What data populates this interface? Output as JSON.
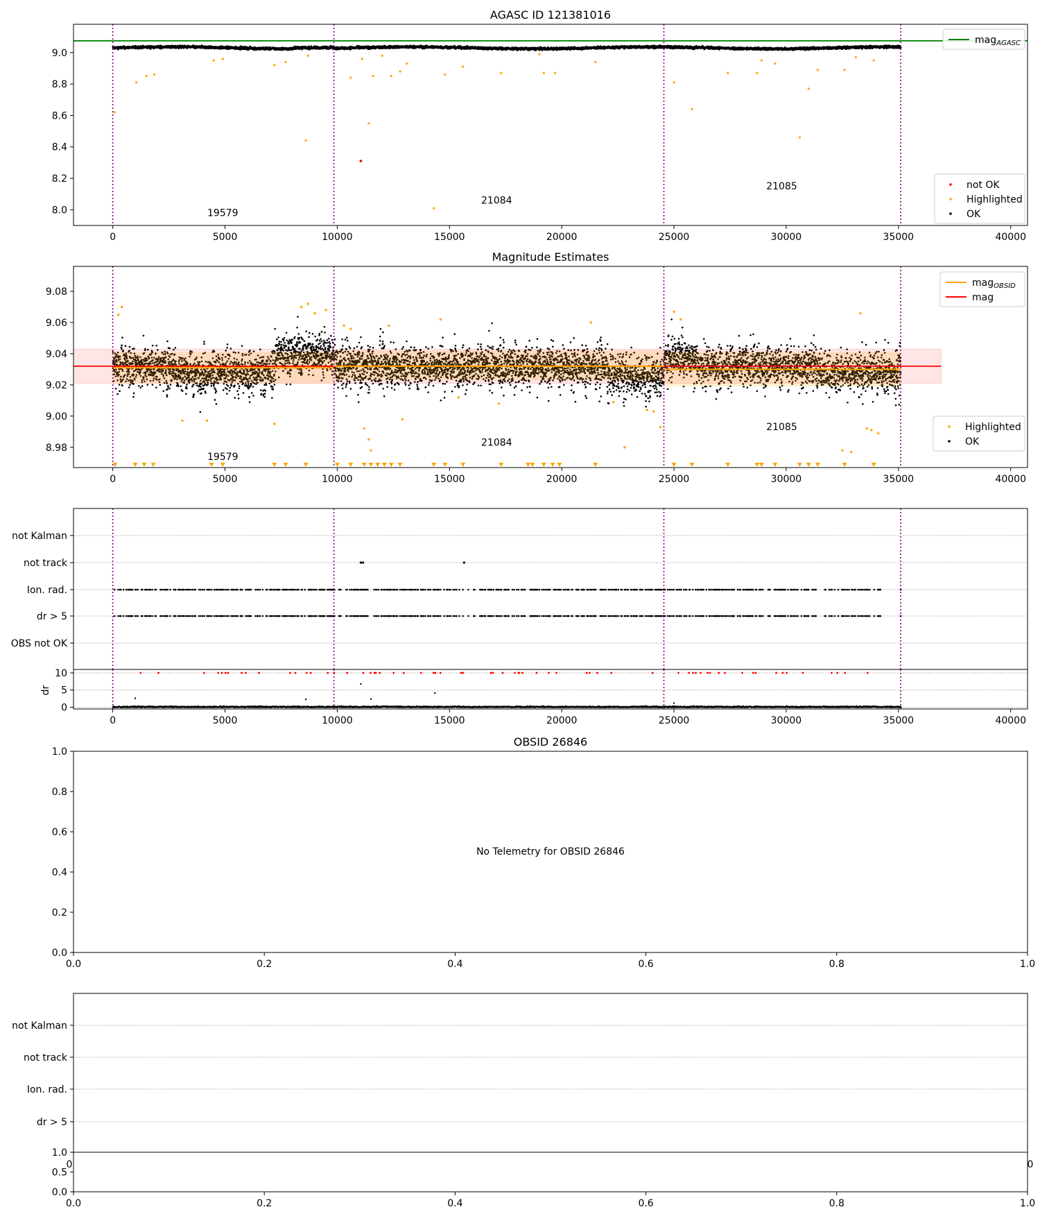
{
  "chart_data": [
    {
      "type": "scatter",
      "title": "AGASC ID 121381016",
      "xlim": [
        -1750,
        40750
      ],
      "ylim": [
        7.9,
        9.18
      ],
      "xticks": [
        0,
        5000,
        10000,
        15000,
        20000,
        25000,
        30000,
        35000,
        40000
      ],
      "xtick_labels": [
        "0",
        "5000",
        "10000",
        "15000",
        "20000",
        "25000",
        "30000",
        "35000",
        "40000"
      ],
      "yticks": [
        8.0,
        8.2,
        8.4,
        8.6,
        8.8,
        9.0
      ],
      "ytick_labels": [
        "8.0",
        "8.2",
        "8.4",
        "8.6",
        "8.8",
        "9.0"
      ],
      "mag_agasc": 9.075,
      "obsid_boundaries": [
        0,
        9850,
        24550,
        35100
      ],
      "obsid_labels": [
        {
          "text": "19579",
          "x": 4900,
          "y": 7.96
        },
        {
          "text": "21084",
          "x": 17100,
          "y": 8.04
        },
        {
          "text": "21085",
          "x": 29800,
          "y": 8.13
        }
      ],
      "ok_band": {
        "x_range": [
          0,
          35100
        ],
        "center": 9.03,
        "spread": 0.025
      },
      "highlighted_points": [
        [
          80,
          8.62
        ],
        [
          1050,
          8.81
        ],
        [
          1500,
          8.85
        ],
        [
          1850,
          8.86
        ],
        [
          4500,
          8.95
        ],
        [
          4900,
          8.96
        ],
        [
          7200,
          8.92
        ],
        [
          7700,
          8.94
        ],
        [
          8600,
          8.44
        ],
        [
          8700,
          8.98
        ],
        [
          10600,
          8.84
        ],
        [
          11100,
          8.96
        ],
        [
          11400,
          8.55
        ],
        [
          11600,
          8.85
        ],
        [
          12000,
          8.98
        ],
        [
          12400,
          8.85
        ],
        [
          12800,
          8.88
        ],
        [
          13100,
          8.93
        ],
        [
          14300,
          8.01
        ],
        [
          14800,
          8.86
        ],
        [
          15600,
          8.91
        ],
        [
          17300,
          8.87
        ],
        [
          19000,
          8.99
        ],
        [
          19200,
          8.87
        ],
        [
          19700,
          8.87
        ],
        [
          21500,
          8.94
        ],
        [
          25000,
          8.81
        ],
        [
          25800,
          8.64
        ],
        [
          27400,
          8.87
        ],
        [
          28700,
          8.87
        ],
        [
          28900,
          8.95
        ],
        [
          29500,
          8.93
        ],
        [
          30600,
          8.46
        ],
        [
          31000,
          8.77
        ],
        [
          31400,
          8.89
        ],
        [
          32600,
          8.89
        ],
        [
          33100,
          8.97
        ],
        [
          33900,
          8.95
        ]
      ],
      "not_ok_points": [
        [
          11050,
          8.31
        ]
      ],
      "legend": [
        {
          "label": "mag",
          "sub": "AGASC",
          "color": "#008000",
          "kind": "line",
          "placement": "upper right"
        },
        {
          "label": "not OK",
          "color": "#ff0000",
          "kind": "point",
          "placement": "lower right"
        },
        {
          "label": "Highlighted",
          "color": "#ffa500",
          "kind": "point",
          "placement": "lower right"
        },
        {
          "label": "OK",
          "color": "#000000",
          "kind": "point",
          "placement": "lower right"
        }
      ]
    },
    {
      "type": "scatter",
      "title": "Magnitude Estimates",
      "xlim": [
        -1750,
        40750
      ],
      "ylim": [
        8.967,
        9.096
      ],
      "xticks": [
        0,
        5000,
        10000,
        15000,
        20000,
        25000,
        30000,
        35000,
        40000
      ],
      "xtick_labels": [
        "0",
        "5000",
        "10000",
        "15000",
        "20000",
        "25000",
        "30000",
        "35000",
        "40000"
      ],
      "yticks": [
        8.98,
        9.0,
        9.02,
        9.04,
        9.06,
        9.08
      ],
      "ytick_labels": [
        "8.98",
        "9.00",
        "9.02",
        "9.04",
        "9.06",
        "9.08"
      ],
      "mag": 9.032,
      "mag_band": [
        9.021,
        9.043
      ],
      "mag_obsid_segments": [
        {
          "x0": 0,
          "x1": 9850,
          "mag": 9.031,
          "band": [
            9.021,
            9.041
          ]
        },
        {
          "x0": 9850,
          "x1": 24550,
          "mag": 9.032,
          "band": [
            9.023,
            9.042
          ]
        },
        {
          "x0": 24550,
          "x1": 35100,
          "mag": 9.03,
          "band": [
            9.019,
            9.041
          ]
        }
      ],
      "obsid_boundaries": [
        0,
        9850,
        24550,
        35100
      ],
      "obsid_labels": [
        {
          "text": "19579",
          "x": 4900,
          "y": 8.972
        },
        {
          "text": "21084",
          "x": 17100,
          "y": 8.981
        },
        {
          "text": "21085",
          "x": 29800,
          "y": 8.991
        }
      ],
      "highlighted_points": [
        [
          250,
          9.065
        ],
        [
          400,
          9.07
        ],
        [
          3100,
          8.997
        ],
        [
          4200,
          8.997
        ],
        [
          7200,
          8.995
        ],
        [
          8400,
          9.07
        ],
        [
          8700,
          9.072
        ],
        [
          9000,
          9.066
        ],
        [
          9500,
          9.068
        ],
        [
          10300,
          9.058
        ],
        [
          10600,
          9.056
        ],
        [
          11200,
          8.992
        ],
        [
          11400,
          8.985
        ],
        [
          11500,
          8.978
        ],
        [
          12300,
          9.058
        ],
        [
          12900,
          8.998
        ],
        [
          14600,
          9.062
        ],
        [
          15400,
          9.012
        ],
        [
          17200,
          9.008
        ],
        [
          21300,
          9.06
        ],
        [
          22300,
          9.009
        ],
        [
          22800,
          8.98
        ],
        [
          23800,
          9.004
        ],
        [
          24100,
          9.003
        ],
        [
          24400,
          8.993
        ],
        [
          25000,
          9.067
        ],
        [
          25300,
          9.062
        ],
        [
          32500,
          8.978
        ],
        [
          32900,
          8.977
        ],
        [
          33300,
          9.066
        ],
        [
          33600,
          8.992
        ],
        [
          33800,
          8.991
        ],
        [
          34100,
          8.989
        ]
      ],
      "low_markers_x": [
        100,
        1000,
        1400,
        1800,
        4400,
        4900,
        7200,
        7700,
        8600,
        10000,
        10600,
        11200,
        11500,
        11800,
        12100,
        12400,
        12800,
        14300,
        14800,
        15600,
        17300,
        18500,
        18700,
        19200,
        19600,
        19900,
        21500,
        25000,
        25800,
        27400,
        28700,
        28900,
        29500,
        30600,
        31000,
        31400,
        32600,
        33900
      ],
      "legend": [
        {
          "label": "mag",
          "sub": "OBSID",
          "color": "#ffa500",
          "kind": "line",
          "placement": "upper right"
        },
        {
          "label": "mag",
          "color": "#ff0000",
          "kind": "line",
          "placement": "upper right"
        },
        {
          "label": "Highlighted",
          "color": "#ffa500",
          "kind": "point",
          "placement": "lower right"
        },
        {
          "label": "OK",
          "color": "#000000",
          "kind": "point",
          "placement": "lower right"
        }
      ]
    },
    {
      "type": "scatter",
      "title": "",
      "xlim": [
        -1750,
        40750
      ],
      "categories": [
        "not Kalman",
        "not track",
        "Ion. rad.",
        "dr > 5",
        "OBS not OK"
      ],
      "xticks": [
        0,
        5000,
        10000,
        15000,
        20000,
        25000,
        30000,
        35000,
        40000
      ],
      "xtick_labels": [
        "0",
        "5000",
        "10000",
        "15000",
        "20000",
        "25000",
        "30000",
        "35000",
        "40000"
      ],
      "obsid_boundaries": [
        0,
        9850,
        24550,
        35100
      ],
      "not_track_x": [
        11050,
        11150,
        15650
      ],
      "flag_x_range": [
        0,
        34200
      ],
      "grid": true
    },
    {
      "type": "scatter",
      "title": "",
      "ylabel": "dr",
      "xlim": [
        -1750,
        40750
      ],
      "ylim": [
        -0.5,
        11
      ],
      "yticks": [
        0,
        5,
        10
      ],
      "ytick_labels": [
        "0",
        "5",
        "10"
      ],
      "obsid_boundaries": [
        0,
        9850,
        24550,
        35100
      ],
      "capped_value": 10,
      "outliers": [
        [
          1000,
          2.6
        ],
        [
          8600,
          2.3
        ],
        [
          11050,
          6.8
        ],
        [
          11500,
          2.4
        ],
        [
          14350,
          4.1
        ],
        [
          25000,
          1.2
        ]
      ],
      "grid": true
    },
    {
      "type": "scatter",
      "title": "OBSID 26846",
      "annotation": "No Telemetry for OBSID 26846",
      "xlim": [
        0,
        1
      ],
      "ylim": [
        0,
        1
      ],
      "xticks": [
        0,
        0.2,
        0.4,
        0.6,
        0.8,
        1.0
      ],
      "xtick_labels": [
        "0.0",
        "0.2",
        "0.4",
        "0.6",
        "0.8",
        "1.0"
      ],
      "yticks": [
        0,
        0.2,
        0.4,
        0.6,
        0.8,
        1.0
      ],
      "ytick_labels": [
        "0.0",
        "0.2",
        "0.4",
        "0.6",
        "0.8",
        "1.0"
      ]
    },
    {
      "type": "scatter",
      "title": "",
      "categories": [
        "not Kalman",
        "not track",
        "Ion. rad.",
        "dr > 5"
      ],
      "xtick_labels": [
        "0",
        "0"
      ],
      "grid": true
    },
    {
      "type": "scatter",
      "title": "",
      "xlim": [
        0,
        1
      ],
      "ylim": [
        0,
        1
      ],
      "xticks": [
        0,
        0.2,
        0.4,
        0.6,
        0.8,
        1.0
      ],
      "xtick_labels": [
        "0.0",
        "0.2",
        "0.4",
        "0.6",
        "0.8",
        "1.0"
      ],
      "yticks": [
        0,
        0.5,
        1.0
      ],
      "ytick_labels": [
        "0.0",
        "0.5",
        "1.0"
      ]
    }
  ]
}
